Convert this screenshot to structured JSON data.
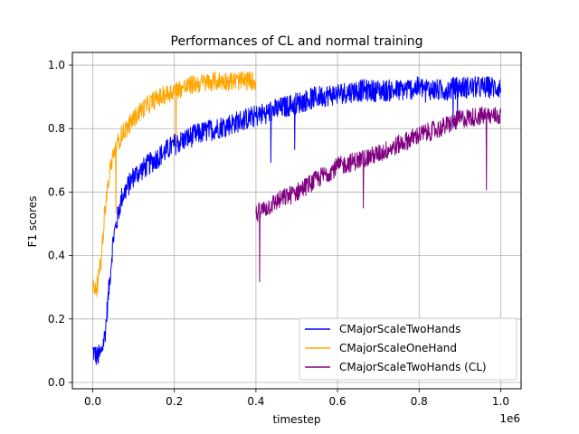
{
  "chart_data": {
    "type": "line",
    "title": "Performances of CL and normal training",
    "xlabel": "timestep",
    "ylabel": "F1 scores",
    "x_offset_label": "1e6",
    "xlim": [
      -0.05,
      1.05
    ],
    "ylim": [
      -0.02,
      1.04
    ],
    "x_ticks": [
      0.0,
      0.2,
      0.4,
      0.6,
      0.8,
      1.0
    ],
    "x_tick_labels": [
      "0.0",
      "0.2",
      "0.4",
      "0.6",
      "0.8",
      "1.0"
    ],
    "y_ticks": [
      0.0,
      0.2,
      0.4,
      0.6,
      0.8,
      1.0
    ],
    "y_tick_labels": [
      "0.0",
      "0.2",
      "0.4",
      "0.6",
      "0.8",
      "1.0"
    ],
    "grid": true,
    "legend_position": "lower-right",
    "series": [
      {
        "name": "CMajorScaleTwoHands",
        "color": "#0000ff",
        "x": [
          0.0,
          0.01,
          0.02,
          0.03,
          0.04,
          0.05,
          0.07,
          0.1,
          0.13,
          0.15,
          0.2,
          0.25,
          0.3,
          0.35,
          0.4,
          0.45,
          0.5,
          0.55,
          0.6,
          0.65,
          0.7,
          0.75,
          0.8,
          0.85,
          0.9,
          0.95,
          1.0
        ],
        "y": [
          0.1,
          0.08,
          0.09,
          0.15,
          0.3,
          0.45,
          0.58,
          0.65,
          0.68,
          0.7,
          0.75,
          0.78,
          0.8,
          0.82,
          0.84,
          0.86,
          0.88,
          0.9,
          0.91,
          0.92,
          0.92,
          0.92,
          0.93,
          0.92,
          0.93,
          0.93,
          0.93
        ]
      },
      {
        "name": "CMajorScaleOneHand",
        "color": "#ffa500",
        "x": [
          0.0,
          0.01,
          0.02,
          0.03,
          0.04,
          0.05,
          0.07,
          0.1,
          0.12,
          0.15,
          0.2,
          0.25,
          0.3,
          0.35,
          0.4
        ],
        "y": [
          0.3,
          0.3,
          0.38,
          0.55,
          0.65,
          0.72,
          0.78,
          0.83,
          0.86,
          0.89,
          0.92,
          0.94,
          0.95,
          0.95,
          0.95
        ]
      },
      {
        "name": "CMajorScaleTwoHands (CL)",
        "color": "#800080",
        "x": [
          0.4,
          0.45,
          0.5,
          0.55,
          0.6,
          0.65,
          0.7,
          0.75,
          0.8,
          0.85,
          0.9,
          0.95,
          1.0
        ],
        "y": [
          0.53,
          0.57,
          0.6,
          0.64,
          0.68,
          0.7,
          0.72,
          0.75,
          0.78,
          0.8,
          0.83,
          0.84,
          0.84
        ]
      }
    ]
  }
}
